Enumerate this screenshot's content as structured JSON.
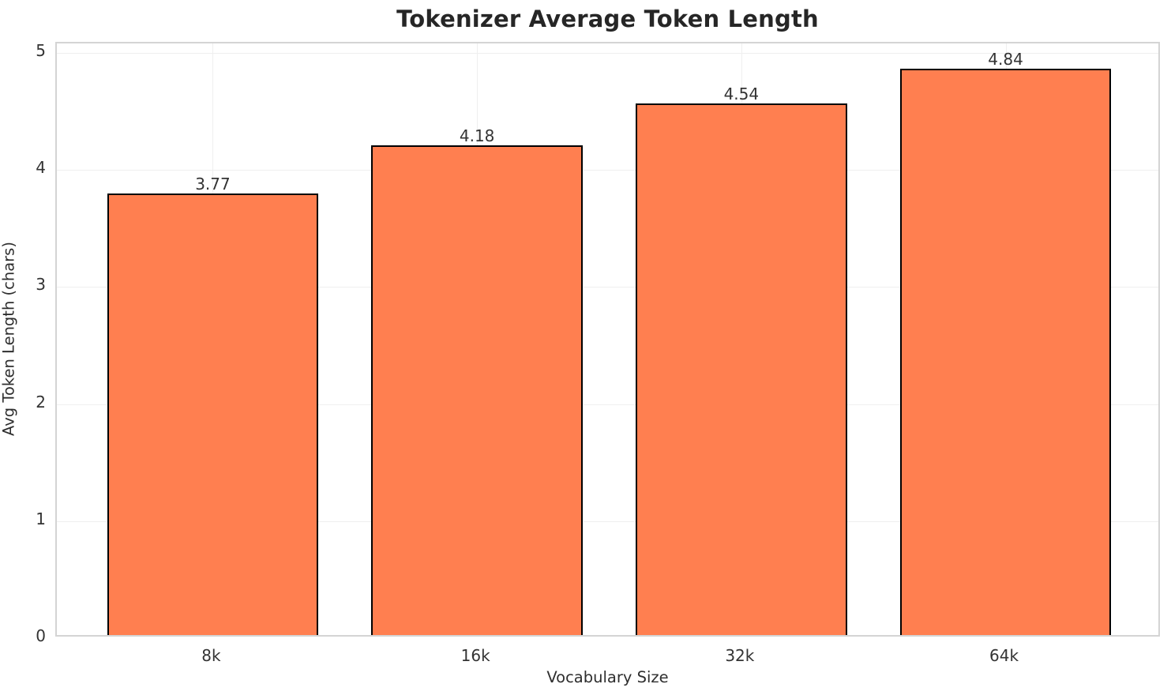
{
  "chart_data": {
    "type": "bar",
    "title": "Tokenizer Average Token Length",
    "xlabel": "Vocabulary Size",
    "ylabel": "Avg Token Length (chars)",
    "categories": [
      "8k",
      "16k",
      "32k",
      "64k"
    ],
    "values": [
      3.77,
      4.18,
      4.54,
      4.84
    ],
    "value_labels": [
      "3.77",
      "4.18",
      "4.54",
      "4.84"
    ],
    "yticks": [
      0,
      1,
      2,
      3,
      4,
      5
    ],
    "ytick_labels": [
      "0",
      "1",
      "2",
      "3",
      "4",
      "5"
    ],
    "ylim": [
      0,
      5.08
    ],
    "xlim": [
      -0.59,
      3.59
    ],
    "bar_width_units": 0.8,
    "grid": true,
    "legend": null,
    "colors": {
      "bar_fill": "#FF7F50",
      "bar_edge": "#000000",
      "grid_line": "#efefef",
      "spine": "#d4d4d4",
      "title_text": "#262626",
      "tick_text": "#333333",
      "axis_label_text": "#2e2e2e",
      "background": "#ffffff"
    }
  }
}
